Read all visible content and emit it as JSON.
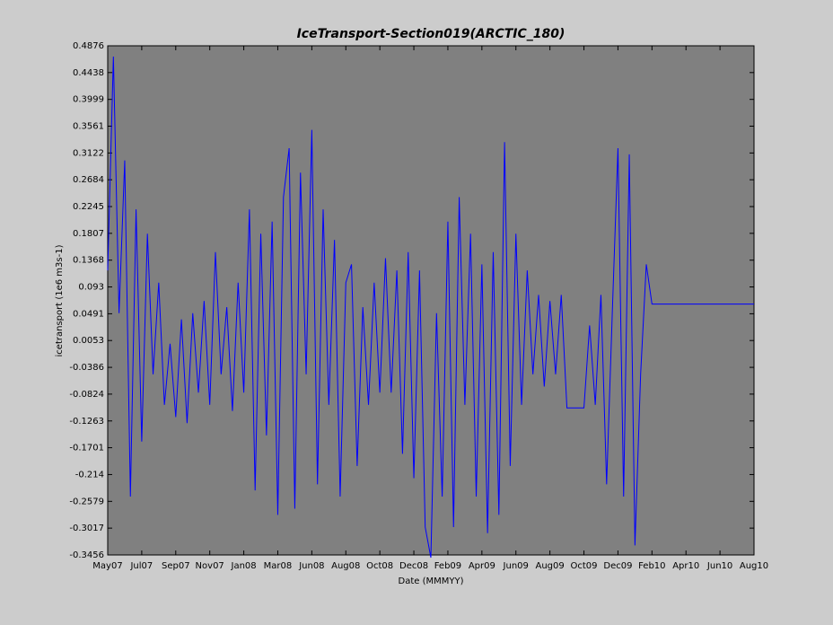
{
  "chart_data": {
    "type": "line",
    "title": "IceTransport-Section019(ARCTIC_180)",
    "x_label": "Date (MMMYY)",
    "y_label": "icetransport (1e6 m3s-1)",
    "categories": [
      "May07",
      null,
      null,
      null,
      null,
      null,
      "Jul07",
      null,
      null,
      null,
      null,
      null,
      "Sep07",
      null,
      null,
      null,
      null,
      null,
      "Nov07",
      null,
      null,
      null,
      null,
      null,
      "Jan08",
      null,
      null,
      null,
      null,
      null,
      "Mar08",
      null,
      null,
      null,
      null,
      null,
      "Jun08",
      null,
      null,
      null,
      null,
      null,
      "Aug08",
      null,
      null,
      null,
      null,
      null,
      "Oct08",
      null,
      null,
      null,
      null,
      null,
      "Dec08",
      null,
      null,
      null,
      null,
      null,
      "Feb09",
      null,
      null,
      null,
      null,
      null,
      "Apr09",
      null,
      null,
      null,
      null,
      null,
      "Jun09",
      null,
      null,
      null,
      null,
      null,
      "Aug09",
      null,
      null,
      null,
      null,
      null,
      "Oct09",
      null,
      null,
      null,
      null,
      null,
      "Dec09",
      null,
      null,
      null,
      null,
      null,
      "Feb10",
      null,
      null,
      null,
      null,
      null,
      "Apr10",
      null,
      null,
      null,
      null,
      null,
      "Jun10",
      null,
      null,
      null,
      null,
      null,
      "Aug10"
    ],
    "series": [
      {
        "name": "icetransport",
        "color": "#0000ff",
        "values": [
          0.12,
          0.47,
          0.05,
          0.3,
          -0.25,
          0.22,
          -0.16,
          0.18,
          -0.05,
          0.1,
          -0.1,
          0.0,
          -0.12,
          0.04,
          -0.13,
          0.05,
          -0.08,
          0.07,
          -0.1,
          0.15,
          -0.05,
          0.06,
          -0.11,
          0.1,
          -0.08,
          0.22,
          -0.24,
          0.18,
          -0.15,
          0.2,
          -0.28,
          0.24,
          0.32,
          -0.27,
          0.28,
          -0.05,
          0.35,
          -0.23,
          0.22,
          -0.1,
          0.17,
          -0.25,
          0.1,
          0.13,
          -0.2,
          0.06,
          -0.1,
          0.1,
          -0.08,
          0.14,
          -0.08,
          0.12,
          -0.18,
          0.15,
          -0.22,
          0.12,
          -0.3,
          -0.35,
          0.05,
          -0.25,
          0.2,
          -0.3,
          0.24,
          -0.1,
          0.18,
          -0.25,
          0.13,
          -0.31,
          0.15,
          -0.28,
          0.33,
          -0.2,
          0.18,
          -0.1,
          0.12,
          -0.05,
          0.08,
          -0.07,
          0.07,
          -0.05,
          0.08,
          -0.105,
          -0.105,
          -0.105,
          -0.105,
          0.03,
          -0.1,
          0.08,
          -0.23,
          0.05,
          0.32,
          -0.25,
          0.31,
          -0.33,
          -0.05,
          0.13,
          0.065,
          0.065,
          0.065,
          0.065,
          0.065,
          0.065,
          0.065,
          0.065,
          0.065,
          0.065,
          0.065,
          0.065,
          0.065,
          0.065,
          0.065,
          0.065,
          0.065,
          0.065,
          0.065
        ]
      }
    ],
    "ylim": [
      -0.3456,
      0.4876
    ],
    "yticks": [
      -0.3456,
      -0.3017,
      -0.2579,
      -0.214,
      -0.1701,
      -0.1263,
      -0.0824,
      -0.0386,
      0.0053,
      0.0491,
      0.093,
      0.1368,
      0.1807,
      0.2245,
      0.2684,
      0.3122,
      0.3561,
      0.3999,
      0.4438,
      0.4876
    ],
    "plot_background": "#808080",
    "grid": false
  }
}
